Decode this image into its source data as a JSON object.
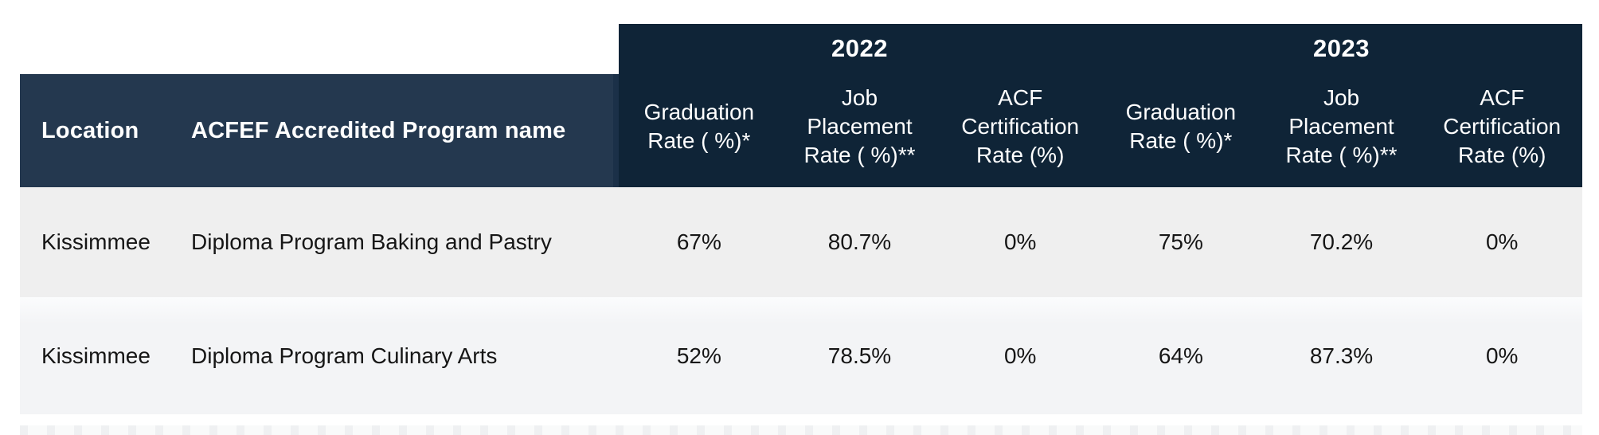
{
  "table": {
    "left_columns": {
      "location_label": "Location",
      "program_label": "ACFEF Accredited Program name"
    },
    "year_groups": [
      "2022",
      "2023"
    ],
    "metric_columns": [
      "Graduation\nRate ( %)*",
      "Job\nPlacement\nRate ( %)**",
      "ACF\nCertification\nRate (%)",
      "Graduation\nRate ( %)*",
      "Job\nPlacement\nRate ( %)**",
      "ACF\nCertification\nRate (%)"
    ],
    "rows": [
      {
        "location": "Kissimmee",
        "program": "Diploma Program Baking and Pastry",
        "values": [
          "67%",
          "80.7%",
          "0%",
          "75%",
          "70.2%",
          "0%"
        ]
      },
      {
        "location": "Kissimmee",
        "program": "Diploma Program Culinary Arts",
        "values": [
          "52%",
          "78.5%",
          "0%",
          "64%",
          "87.3%",
          "0%"
        ]
      }
    ],
    "colors": {
      "header_dark": "#0F2437",
      "header_light": "#24384F",
      "divider": "#1B3048",
      "row_odd": "#EFEFEF",
      "row_even": "#F4F5F6",
      "header_text": "#FFFFFF",
      "body_text": "#161616"
    }
  }
}
